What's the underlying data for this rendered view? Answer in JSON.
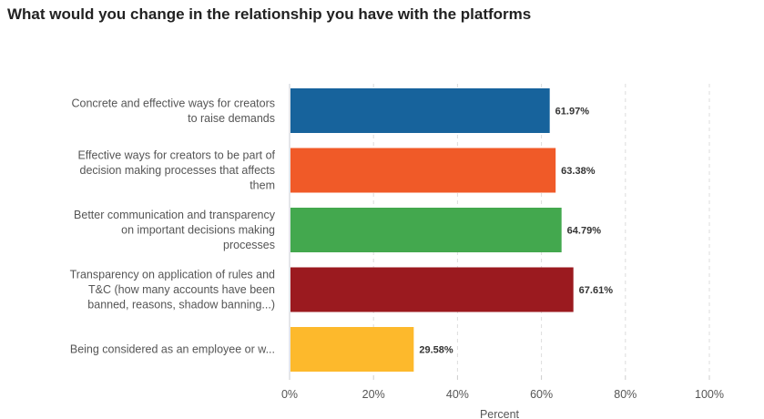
{
  "chart_data": {
    "type": "bar",
    "orientation": "horizontal",
    "title": "What would you change in the relationship you have with the platforms",
    "xlabel": "Percent",
    "ylabel": "",
    "xlim": [
      0,
      100
    ],
    "grid": true,
    "categories": [
      [
        "Concrete and effective ways for creators",
        "to raise demands"
      ],
      [
        "Effective ways for creators to be part of",
        "decision making processes that affects",
        "them"
      ],
      [
        "Better communication and transparency",
        "on important decisions making",
        "processes"
      ],
      [
        "Transparency on application of rules and",
        "T&C (how many accounts have been",
        "banned, reasons, shadow banning...)"
      ],
      [
        "Being considered as an employee or w..."
      ]
    ],
    "values": [
      61.97,
      63.38,
      64.79,
      67.61,
      29.58
    ],
    "value_labels": [
      "61.97%",
      "63.38%",
      "64.79%",
      "67.61%",
      "29.58%"
    ],
    "colors": [
      "#17639c",
      "#f05a28",
      "#43a84e",
      "#9b1a1f",
      "#fdb92c"
    ],
    "ticks": [
      0,
      20,
      40,
      60,
      80,
      100
    ],
    "tick_labels": [
      "0%",
      "20%",
      "40%",
      "60%",
      "80%",
      "100%"
    ]
  }
}
